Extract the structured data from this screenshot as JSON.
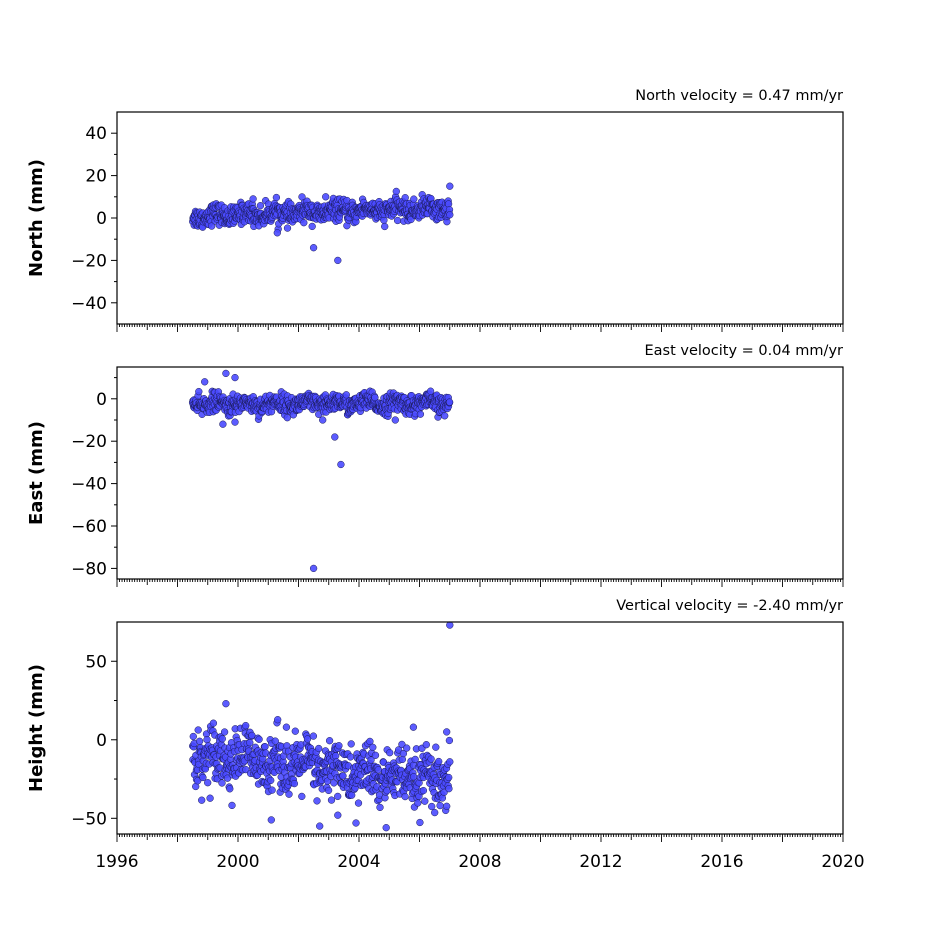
{
  "chart_data": [
    {
      "type": "scatter",
      "title": "North velocity = 0.47 mm/yr",
      "xlabel": "",
      "ylabel": "North (mm)",
      "xlim": [
        1996,
        2020
      ],
      "ylim": [
        -50,
        50
      ],
      "yticks": [
        -40,
        -20,
        0,
        20,
        40
      ],
      "grid": false,
      "marker_color": "#4a4aff",
      "series": [
        {
          "name": "",
          "start_year": 1998.5,
          "end_year": 2007.0,
          "trend_mm_per_yr": 0.47,
          "value_at_start": 0.8,
          "scatter_mm": 2.4,
          "outliers": [
            [
              2002.5,
              -14
            ],
            [
              2003.3,
              -20
            ],
            [
              2001.3,
              -7
            ],
            [
              2007.0,
              15
            ],
            [
              2000.5,
              9
            ],
            [
              2002.9,
              10
            ]
          ]
        }
      ]
    },
    {
      "type": "scatter",
      "title": "East velocity = 0.04 mm/yr",
      "xlabel": "",
      "ylabel": "East (mm)",
      "xlim": [
        1996,
        2020
      ],
      "ylim": [
        -85,
        15
      ],
      "yticks": [
        -80,
        -60,
        -40,
        -20,
        0
      ],
      "grid": false,
      "marker_color": "#4a4aff",
      "series": [
        {
          "name": "",
          "start_year": 1998.5,
          "end_year": 2007.0,
          "trend_mm_per_yr": 0.04,
          "value_at_start": -2.5,
          "scatter_mm": 2.2,
          "outliers": [
            [
              2002.5,
              -80
            ],
            [
              2003.4,
              -31
            ],
            [
              2003.2,
              -18
            ],
            [
              1999.6,
              12
            ],
            [
              1999.9,
              10
            ],
            [
              1998.9,
              8
            ],
            [
              1999.5,
              -12
            ],
            [
              1999.9,
              -11
            ],
            [
              2005.2,
              -10
            ],
            [
              2002.8,
              -10
            ]
          ]
        }
      ]
    },
    {
      "type": "scatter",
      "title": "Vertical velocity = -2.40 mm/yr",
      "xlabel": "",
      "ylabel": "Height (mm)",
      "xlim": [
        1996,
        2020
      ],
      "ylim": [
        -60,
        75
      ],
      "yticks": [
        -50,
        0,
        50
      ],
      "xticks": [
        1996,
        2000,
        2004,
        2008,
        2012,
        2016,
        2020
      ],
      "grid": false,
      "marker_color": "#4a4aff",
      "series": [
        {
          "name": "",
          "start_year": 1998.5,
          "end_year": 2007.0,
          "trend_mm_per_yr": -2.4,
          "value_at_start": -8,
          "scatter_mm": 9,
          "outliers": [
            [
              2007.0,
              73
            ],
            [
              1999.6,
              23
            ],
            [
              2001.6,
              8
            ],
            [
              2005.8,
              8
            ],
            [
              2006.9,
              5
            ],
            [
              2004.9,
              -56
            ],
            [
              2002.7,
              -55
            ],
            [
              2003.9,
              -53
            ],
            [
              2001.1,
              -51
            ],
            [
              2003.3,
              -48
            ]
          ]
        }
      ]
    }
  ]
}
